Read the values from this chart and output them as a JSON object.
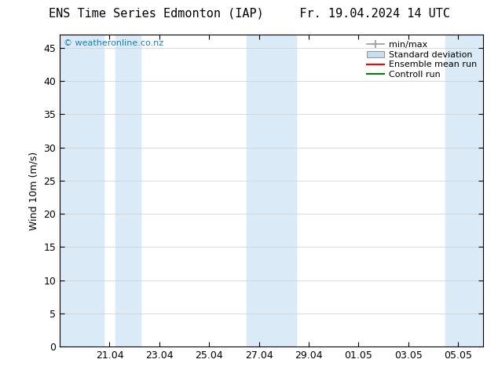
{
  "title_left": "ENS Time Series Edmonton (IAP)",
  "title_right": "Fr. 19.04.2024 14 UTC",
  "ylabel": "Wind 10m (m/s)",
  "watermark": "© weatheronline.co.nz",
  "ylim": [
    0,
    47
  ],
  "yticks": [
    0,
    5,
    10,
    15,
    20,
    25,
    30,
    35,
    40,
    45
  ],
  "x_min": 0.0,
  "x_max": 17.0,
  "background_color": "#ffffff",
  "plot_bg_color": "#ffffff",
  "shaded_color": "#daeaf7",
  "shaded_regions": [
    [
      0.0,
      1.75
    ],
    [
      2.25,
      3.25
    ],
    [
      7.5,
      9.5
    ],
    [
      15.5,
      17.0
    ]
  ],
  "x_tick_labels": [
    "21.04",
    "23.04",
    "25.04",
    "27.04",
    "29.04",
    "01.05",
    "03.05",
    "05.05"
  ],
  "x_tick_positions": [
    2,
    4,
    6,
    8,
    10,
    12,
    14,
    16
  ],
  "grid_color": "#cccccc",
  "title_fontsize": 11,
  "label_fontsize": 9,
  "tick_fontsize": 9,
  "legend_entries": [
    "min/max",
    "Standard deviation",
    "Ensemble mean run",
    "Controll run"
  ],
  "legend_line_color": "#999999",
  "legend_patch_color": "#c8ddf0",
  "legend_patch_edge": "#999999",
  "legend_red": "#ff0000",
  "legend_green": "#008000",
  "watermark_color": "#1a80b4"
}
